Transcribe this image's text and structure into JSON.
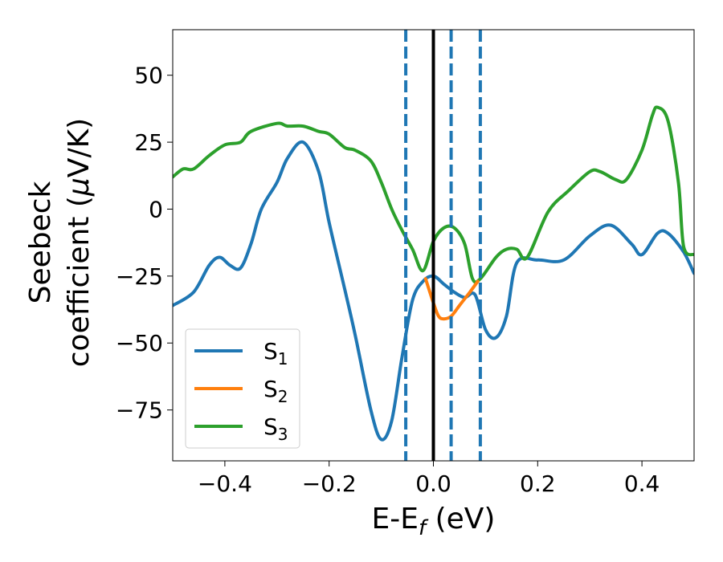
{
  "chart_data": {
    "type": "line",
    "xlabel": "E-E",
    "xlabel_sub": "f",
    "xlabel_unit": " (eV)",
    "ylabel_line1": "Seebeck",
    "ylabel_line2_prefix": "coefficient  (",
    "ylabel_mu": "μ",
    "ylabel_line2_suffix": "V/K)",
    "xlim": [
      -0.5,
      0.5
    ],
    "ylim": [
      -94,
      67
    ],
    "xticks": [
      -0.4,
      -0.2,
      0.0,
      0.2,
      0.4
    ],
    "xtick_labels": [
      "−0.4",
      "−0.2",
      "0.0",
      "0.2",
      "0.4"
    ],
    "yticks": [
      50,
      25,
      0,
      -25,
      -50,
      -75
    ],
    "ytick_labels": [
      "50",
      "25",
      "0",
      "−25",
      "−50",
      "−75"
    ],
    "grid": false,
    "legend_position": "lower-left",
    "vertical_lines": [
      {
        "x": 0.0,
        "style": "solid",
        "color": "#000000"
      },
      {
        "x": -0.053,
        "style": "dashed",
        "color": "#1f77b4"
      },
      {
        "x": 0.034,
        "style": "dashed",
        "color": "#1f77b4"
      },
      {
        "x": 0.09,
        "style": "dashed",
        "color": "#1f77b4"
      }
    ],
    "series": [
      {
        "name": "S",
        "sub": "1",
        "color": "#1f77b4",
        "x": [
          -0.5,
          -0.46,
          -0.43,
          -0.41,
          -0.39,
          -0.37,
          -0.35,
          -0.33,
          -0.3,
          -0.28,
          -0.25,
          -0.22,
          -0.2,
          -0.17,
          -0.15,
          -0.12,
          -0.1,
          -0.08,
          -0.06,
          -0.04,
          -0.02,
          0.0,
          0.02,
          0.04,
          0.06,
          0.08,
          0.1,
          0.12,
          0.14,
          0.16,
          0.2,
          0.25,
          0.3,
          0.34,
          0.38,
          0.4,
          0.43,
          0.45,
          0.48,
          0.5
        ],
        "y": [
          -36,
          -31,
          -21,
          -18,
          -21,
          -22,
          -13,
          0,
          10,
          19,
          25,
          14,
          -5,
          -30,
          -47,
          -75,
          -86,
          -79,
          -55,
          -34,
          -27,
          -25,
          -28,
          -31,
          -33,
          -32,
          -45,
          -48,
          -40,
          -20,
          -19,
          -19,
          -10,
          -6,
          -13,
          -17,
          -9,
          -9,
          -16,
          -24
        ]
      },
      {
        "name": "S",
        "sub": "2",
        "color": "#ff7f0e",
        "x": [
          -0.015,
          0.0,
          0.01,
          0.02,
          0.034,
          0.05,
          0.07,
          0.085
        ],
        "y": [
          -26,
          -35,
          -40,
          -41,
          -40,
          -36,
          -31,
          -27
        ]
      },
      {
        "name": "S",
        "sub": "3",
        "color": "#2ca02c",
        "x": [
          -0.5,
          -0.48,
          -0.46,
          -0.43,
          -0.4,
          -0.37,
          -0.35,
          -0.3,
          -0.28,
          -0.25,
          -0.22,
          -0.2,
          -0.17,
          -0.15,
          -0.12,
          -0.1,
          -0.08,
          -0.06,
          -0.04,
          -0.02,
          0.0,
          0.02,
          0.04,
          0.06,
          0.075,
          0.09,
          0.12,
          0.14,
          0.16,
          0.18,
          0.22,
          0.26,
          0.3,
          0.32,
          0.35,
          0.37,
          0.4,
          0.42,
          0.43,
          0.45,
          0.47,
          0.48,
          0.5
        ],
        "y": [
          12,
          15,
          15,
          20,
          24,
          25,
          29,
          32,
          31,
          31,
          29,
          28,
          23,
          22,
          18,
          10,
          0,
          -8,
          -15,
          -23,
          -12,
          -7,
          -7,
          -13,
          -26,
          -26,
          -18,
          -15,
          -15,
          -18,
          -1,
          7,
          14,
          14,
          11,
          11,
          22,
          35,
          38,
          33,
          10,
          -14,
          -17
        ]
      }
    ]
  }
}
